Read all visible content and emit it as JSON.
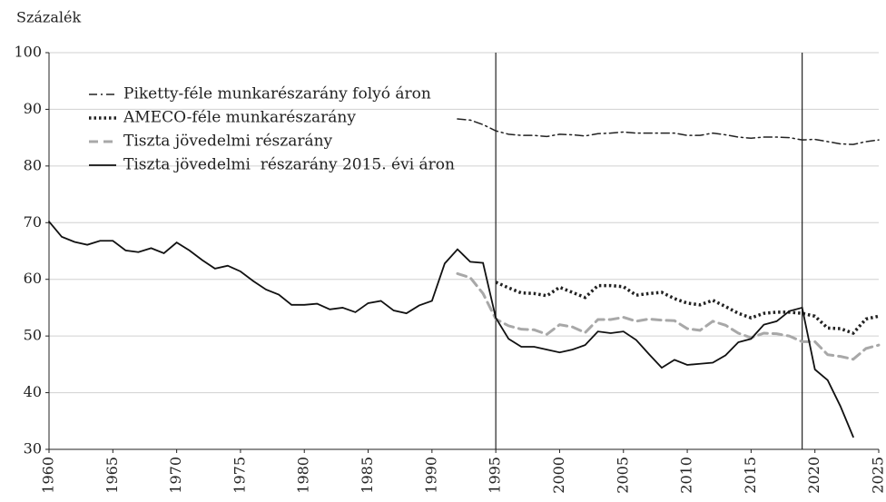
{
  "chart_data": {
    "type": "line",
    "y_label": "Százalék",
    "x": [
      1960,
      1961,
      1962,
      1963,
      1964,
      1965,
      1966,
      1967,
      1968,
      1969,
      1970,
      1971,
      1972,
      1973,
      1974,
      1975,
      1976,
      1977,
      1978,
      1979,
      1980,
      1981,
      1982,
      1983,
      1984,
      1985,
      1986,
      1987,
      1988,
      1989,
      1990,
      1991,
      1992,
      1993,
      1994,
      1995,
      1996,
      1997,
      1998,
      1999,
      2000,
      2001,
      2002,
      2003,
      2004,
      2005,
      2006,
      2007,
      2008,
      2009,
      2010,
      2011,
      2012,
      2013,
      2014,
      2015,
      2016,
      2017,
      2018,
      2019,
      2020,
      2021,
      2022,
      2023,
      2024,
      2025
    ],
    "series": [
      {
        "name": "Piketty-féle munkarészarány folyó áron",
        "color": "#222222",
        "style": "dashdot",
        "values": [
          null,
          null,
          null,
          null,
          null,
          null,
          null,
          null,
          null,
          null,
          null,
          null,
          null,
          null,
          null,
          null,
          null,
          null,
          null,
          null,
          null,
          null,
          null,
          null,
          null,
          null,
          null,
          null,
          null,
          null,
          null,
          null,
          88.3,
          88.1,
          87.3,
          86.2,
          85.6,
          85.4,
          85.4,
          85.2,
          85.6,
          85.5,
          85.3,
          85.7,
          85.8,
          86.0,
          85.8,
          85.8,
          85.8,
          85.8,
          85.4,
          85.4,
          85.8,
          85.5,
          85.1,
          84.9,
          85.1,
          85.1,
          85.0,
          84.6,
          84.7,
          84.3,
          83.9,
          83.8,
          84.3,
          84.6
        ]
      },
      {
        "name": "AMECO-féle munkarészarány",
        "color": "#222222",
        "style": "dotted",
        "values": [
          null,
          null,
          null,
          null,
          null,
          null,
          null,
          null,
          null,
          null,
          null,
          null,
          null,
          null,
          null,
          null,
          null,
          null,
          null,
          null,
          null,
          null,
          null,
          null,
          null,
          null,
          null,
          null,
          null,
          null,
          null,
          null,
          null,
          null,
          null,
          59.5,
          58.5,
          57.6,
          57.5,
          57.1,
          58.6,
          57.7,
          56.8,
          58.9,
          58.9,
          58.7,
          57.2,
          57.5,
          57.7,
          56.6,
          55.8,
          55.5,
          56.3,
          55.2,
          54.0,
          53.2,
          54.0,
          54.2,
          54.2,
          54.0,
          53.5,
          51.4,
          51.3,
          50.5,
          53.0,
          53.5
        ]
      },
      {
        "name": "Tiszta jövedelmi részarány",
        "color": "#a8a8a8",
        "style": "dashed",
        "values": [
          null,
          null,
          null,
          null,
          null,
          null,
          null,
          null,
          null,
          null,
          null,
          null,
          null,
          null,
          null,
          null,
          null,
          null,
          null,
          null,
          null,
          null,
          null,
          null,
          null,
          null,
          null,
          null,
          null,
          null,
          null,
          null,
          61.0,
          60.3,
          57.5,
          53.0,
          51.8,
          51.2,
          51.1,
          50.3,
          52.0,
          51.6,
          50.6,
          52.9,
          52.9,
          53.3,
          52.6,
          53.0,
          52.8,
          52.7,
          51.3,
          51.0,
          52.6,
          51.9,
          50.5,
          49.7,
          50.5,
          50.4,
          50.0,
          49.0,
          49.0,
          46.7,
          46.4,
          45.9,
          47.8,
          48.4
        ]
      },
      {
        "name": "Tiszta jövedelmi  részarány 2015. évi áron",
        "color": "#111111",
        "style": "solid",
        "values": [
          70.2,
          67.5,
          66.6,
          66.1,
          66.8,
          66.8,
          65.1,
          64.8,
          65.5,
          64.6,
          66.5,
          65.1,
          63.4,
          61.9,
          62.4,
          61.4,
          59.7,
          58.2,
          57.3,
          55.5,
          55.5,
          55.7,
          54.7,
          55.0,
          54.2,
          55.8,
          56.2,
          54.5,
          54.0,
          55.4,
          56.2,
          62.8,
          65.3,
          63.1,
          62.9,
          53.2,
          49.5,
          48.1,
          48.1,
          47.6,
          47.1,
          47.6,
          48.4,
          50.8,
          50.5,
          50.8,
          49.3,
          46.8,
          44.4,
          45.8,
          44.9,
          45.1,
          45.3,
          46.6,
          48.9,
          49.5,
          52.0,
          52.6,
          54.4,
          55.0,
          44.1,
          42.2,
          37.6,
          32.2,
          null,
          null
        ]
      }
    ],
    "vlines": [
      1995,
      2019
    ],
    "xlim": [
      1960,
      2025
    ],
    "xticks": [
      1960,
      1965,
      1970,
      1975,
      1980,
      1985,
      1990,
      1995,
      2000,
      2005,
      2010,
      2015,
      2020,
      2025
    ],
    "ylim": [
      30,
      100
    ],
    "yticks": [
      30,
      40,
      50,
      60,
      70,
      80,
      90,
      100
    ],
    "grid": true,
    "legend": "upper left"
  }
}
